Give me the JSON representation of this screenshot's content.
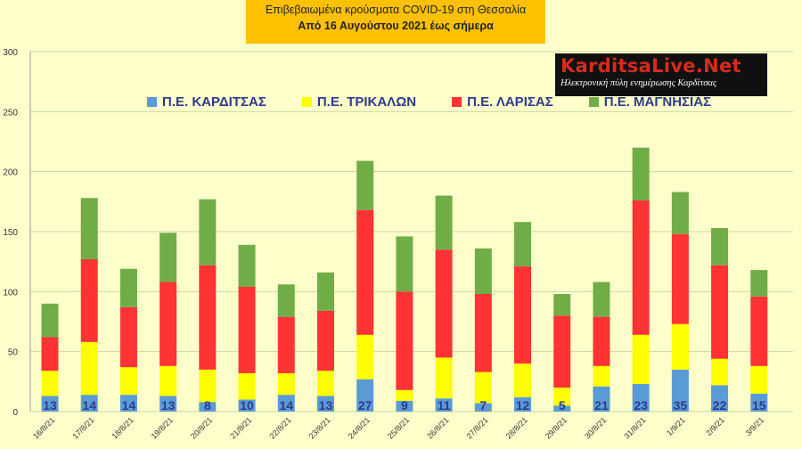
{
  "title": {
    "line1": "Επιβεβαιωμένα κρούσματα COVID-19 στη Θεσσαλία",
    "line2": "Από 16 Αυγούστου 2021 έως σήμερα"
  },
  "logo": {
    "name": "KarditsaLive.Net",
    "tagline": "Ηλεκτρονική πύλη ενημέρωσης Καρδίτσας"
  },
  "colors": {
    "background": "#ffffcc",
    "plot_background": "#ffffcc",
    "title_box": "#ffc000",
    "gridline": "#c6d9a0",
    "label_text": "#2f3a8a"
  },
  "chart_data": {
    "type": "bar",
    "stacked": true,
    "categories": [
      "16/8/21",
      "17/8/21",
      "18/8/21",
      "19/8/21",
      "20/8/21",
      "21/8/21",
      "22/8/21",
      "23/8/21",
      "24/8/21",
      "25/8/21",
      "26/8/21",
      "27/8/21",
      "28/8/21",
      "29/8/21",
      "30/8/21",
      "31/8/21",
      "1/9/21",
      "2/9/21",
      "3/9/21"
    ],
    "series": [
      {
        "name": "Π.Ε. ΚΑΡΔΙΤΣΑΣ",
        "color": "#5b9bd5",
        "values": [
          13,
          14,
          14,
          13,
          8,
          10,
          14,
          13,
          27,
          9,
          11,
          7,
          12,
          5,
          21,
          23,
          35,
          22,
          15
        ]
      },
      {
        "name": "Π.Ε. ΤΡΙΚΑΛΩΝ",
        "color": "#ffff00",
        "values": [
          21,
          44,
          23,
          25,
          27,
          22,
          18,
          21,
          37,
          9,
          34,
          26,
          28,
          15,
          17,
          41,
          38,
          22,
          23
        ]
      },
      {
        "name": "Π.Ε. ΛΑΡΙΣΑΣ",
        "color": "#ff3333",
        "values": [
          28,
          69,
          50,
          70,
          87,
          72,
          47,
          50,
          104,
          82,
          90,
          65,
          81,
          60,
          41,
          112,
          75,
          78,
          58
        ]
      },
      {
        "name": "Π.Ε. ΜΑΓΝΗΣΙΑΣ",
        "color": "#70ad47",
        "values": [
          28,
          51,
          32,
          41,
          55,
          35,
          27,
          32,
          41,
          46,
          45,
          38,
          37,
          18,
          29,
          44,
          35,
          31,
          22
        ]
      }
    ],
    "data_labels": [
      13,
      14,
      14,
      13,
      8,
      10,
      14,
      13,
      27,
      9,
      11,
      7,
      12,
      5,
      21,
      23,
      35,
      22,
      15
    ],
    "yticks": [
      0,
      50,
      100,
      150,
      200,
      250,
      300
    ],
    "ylim": [
      0,
      300
    ],
    "grid": true,
    "legend_position": "top"
  }
}
